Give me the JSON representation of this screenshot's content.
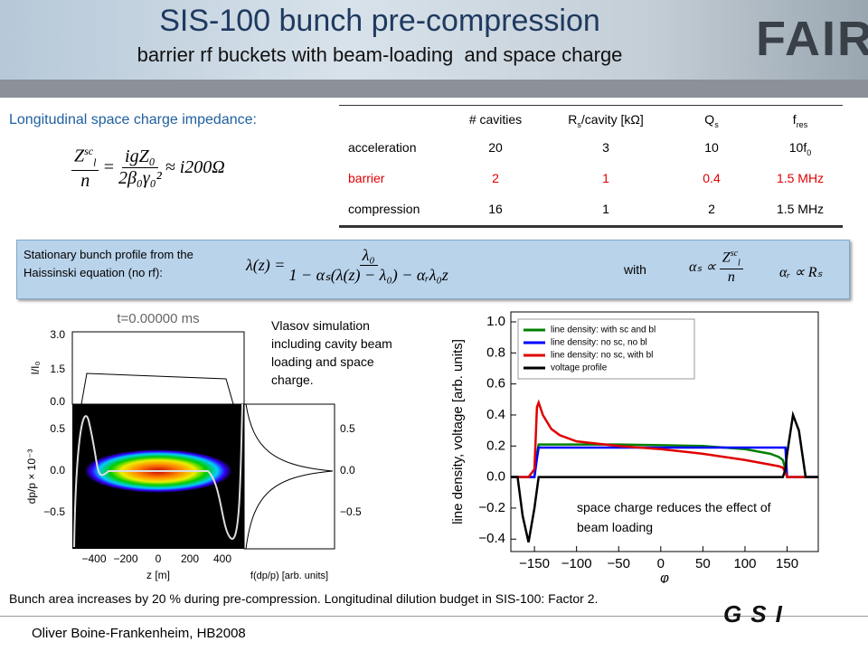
{
  "header": {
    "title": "SIS-100 bunch pre-compression",
    "subtitle": "barrier rf buckets with beam-loading  and space charge",
    "logo_fair": "FAIR"
  },
  "impedance": {
    "heading": "Longitudinal space charge impedance:",
    "lhs_main": "Z",
    "lhs_sup": "sc",
    "lhs_sub": "l",
    "lhs_den": "n",
    "rhs_num": "igZ₀",
    "rhs_den": "2β₀γ₀²",
    "approx": "≈ i200Ω"
  },
  "table": {
    "header": [
      "# cavities",
      {
        "main": "R",
        "sub": "s",
        "rest": "/cavity [kΩ]"
      },
      {
        "main": "Q",
        "sub": "s"
      },
      {
        "main": "f",
        "sub": "res"
      }
    ],
    "rows": [
      [
        "acceleration",
        20,
        3,
        10,
        {
          "main": "10f",
          "sub": "0"
        }
      ],
      [
        "barrier",
        2,
        1,
        0.4,
        "1.5 MHz"
      ],
      [
        "compression",
        16,
        1,
        2,
        "1.5 MHz"
      ]
    ]
  },
  "profile_box": {
    "text": "Stationary bunch profile from the Haissinski equation (no rf):",
    "lhs": "λ(z) =",
    "num": "λ₀",
    "den": "1 − αₛ(λ(z) − λ₀) − αᵣλ₀z",
    "with": "with",
    "alpha_s": "αₛ ∝",
    "alpha_s_main": "Z",
    "alpha_s_sup": "sc",
    "alpha_s_sub": "l",
    "alpha_s_den": "n",
    "alpha_r": "αᵣ ∝ Rₛ"
  },
  "left_figure": {
    "title": "t=0.00000 ms",
    "top_ylabel": "I/I₀",
    "top_yticks": [
      "3.0",
      "1.5",
      "0.0"
    ],
    "ylabel": "dp/p × 10⁻³",
    "yticks": [
      "0.5",
      "0.0",
      "−0.5"
    ],
    "right_yticks": [
      "0.5",
      "0.0",
      "−0.5"
    ],
    "xticks": [
      "−400",
      "−200",
      "0",
      "200",
      "400"
    ],
    "xlabel": "z [m]",
    "right_xlabel": "f(dp/p) [arb. units]"
  },
  "vlasov_note": "Vlasov simulation including cavity beam loading and space charge.",
  "chart_data": {
    "type": "line",
    "ylabel": "line density, voltage [arb. units]",
    "xlabel": "φ",
    "annotation": "space charge reduces the effect of beam loading",
    "x": [
      -178,
      -170,
      -164,
      -157,
      -150,
      -147,
      -145,
      -140,
      -130,
      -120,
      -100,
      -50,
      0,
      50,
      100,
      130,
      140,
      145,
      148,
      150,
      157,
      164,
      172,
      187
    ],
    "series": [
      {
        "name": "line density: with sc and bl",
        "color": "#008000",
        "values": [
          0,
          0,
          0,
          0,
          0,
          0.15,
          0.21,
          0.21,
          0.21,
          0.21,
          0.21,
          0.21,
          0.205,
          0.2,
          0.18,
          0.15,
          0.13,
          0.11,
          0.05,
          0,
          0,
          0,
          0,
          0
        ]
      },
      {
        "name": "line density: no sc, no bl",
        "color": "#0000ff",
        "values": [
          0,
          0,
          0,
          0,
          0,
          0.12,
          0.19,
          0.19,
          0.19,
          0.19,
          0.19,
          0.19,
          0.19,
          0.19,
          0.19,
          0.19,
          0.19,
          0.19,
          0.19,
          0,
          0,
          0,
          0,
          0
        ]
      },
      {
        "name": "line density: no sc, with bl",
        "color": "#e00000",
        "values": [
          0,
          0,
          0,
          0,
          0.05,
          0.45,
          0.48,
          0.4,
          0.31,
          0.27,
          0.23,
          0.2,
          0.18,
          0.15,
          0.11,
          0.08,
          0.07,
          0.06,
          0.03,
          0,
          0,
          0,
          0,
          0
        ]
      },
      {
        "name": "voltage profile",
        "color": "#000000",
        "values": [
          0,
          0,
          -0.25,
          -0.42,
          -0.2,
          -0.08,
          0,
          0,
          0,
          0,
          0,
          0,
          0,
          0,
          0,
          0,
          0,
          0,
          0.05,
          0.15,
          0.4,
          0.3,
          0,
          0
        ]
      }
    ],
    "xlim": [
      -178,
      187
    ],
    "ylim": [
      -0.48,
      1.064
    ],
    "xticks": [
      {
        "value": -150,
        "label": "−150"
      },
      {
        "value": -100,
        "label": "−100"
      },
      {
        "value": -50,
        "label": "−50"
      },
      0,
      50,
      100,
      150
    ],
    "yticks": [
      {
        "value": -0.4,
        "label": "−0.4"
      },
      {
        "value": -0.2,
        "label": "−0.2"
      },
      {
        "value": 0,
        "label": "0.0"
      },
      0.2,
      0.4,
      0.6,
      0.8,
      {
        "value": 1,
        "label": "1.0"
      }
    ],
    "legend": "upper left",
    "grid": false
  },
  "footer": {
    "note": "Bunch area increases by 20 % during pre-compression. Longitudinal dilution budget in SIS-100: Factor 2.",
    "author": "Oliver Boine-Frankenheim, HB2008",
    "logo_gsi": "GSI"
  }
}
